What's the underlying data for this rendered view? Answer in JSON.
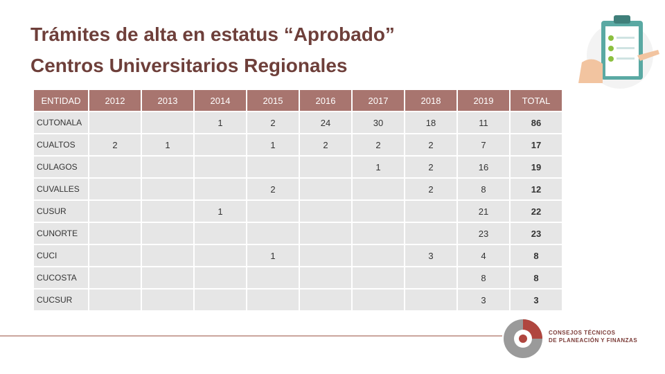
{
  "header": {
    "title_lines": [
      "Trámites de alta en estatus “Aprobado”",
      "Centros Universitarios Regionales"
    ]
  },
  "table": {
    "columns": [
      "ENTIDAD",
      "2012",
      "2013",
      "2014",
      "2015",
      "2016",
      "2017",
      "2018",
      "2019",
      "TOTAL"
    ],
    "rows": [
      [
        "CUTONALA",
        null,
        null,
        1,
        2,
        24,
        30,
        18,
        11,
        86
      ],
      [
        "CUALTOS",
        2,
        1,
        null,
        1,
        2,
        2,
        2,
        7,
        17
      ],
      [
        "CULAGOS",
        null,
        null,
        null,
        null,
        null,
        1,
        2,
        16,
        19
      ],
      [
        "CUVALLES",
        null,
        null,
        null,
        2,
        null,
        null,
        2,
        8,
        12
      ],
      [
        "CUSUR",
        null,
        null,
        1,
        null,
        null,
        null,
        null,
        21,
        22
      ],
      [
        "CUNORTE",
        null,
        null,
        null,
        null,
        null,
        null,
        null,
        23,
        23
      ],
      [
        "CUCI",
        null,
        null,
        null,
        1,
        null,
        null,
        3,
        4,
        8
      ],
      [
        "CUCOSTA",
        null,
        null,
        null,
        null,
        null,
        null,
        null,
        8,
        8
      ],
      [
        "CUCSUR",
        null,
        null,
        null,
        null,
        null,
        null,
        null,
        3,
        3
      ]
    ]
  },
  "logo": {
    "line1": "Consejos Técnicos",
    "line2": "de Planeación y Finanzas"
  }
}
